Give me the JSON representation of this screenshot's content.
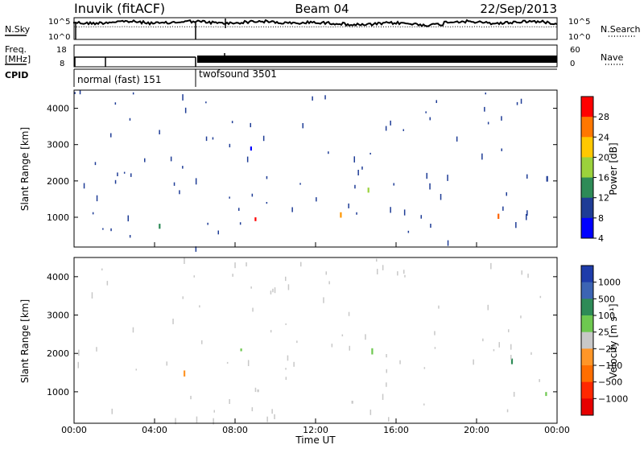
{
  "header": {
    "station": "Inuvik (fitACF)",
    "beam": "Beam 04",
    "date": "22/Sep/2013"
  },
  "top_panels": {
    "nsky_label": "N.Sky",
    "nsearch_label": "N.Search",
    "nsky_ticks": [
      "10^5",
      "10^0"
    ],
    "freq_label_1": "Freq.",
    "freq_label_2": "[MHz]",
    "freq_ticks": [
      "18",
      "8"
    ],
    "nave_label": "Nave",
    "nave_ticks": [
      "60",
      "0"
    ],
    "cpid_label": "CPID",
    "modes": [
      {
        "name": "normal (fast) 151",
        "start_hour": 0,
        "end_hour": 6
      },
      {
        "name": "twofsound 3501",
        "start_hour": 6,
        "end_hour": 24
      }
    ]
  },
  "chart_data": [
    {
      "type": "heatmap",
      "ylabel": "Slant Range [km]",
      "xlabel": "",
      "x_ticks": [
        "00:00",
        "04:00",
        "08:00",
        "12:00",
        "16:00",
        "20:00",
        "00:00"
      ],
      "x_range_hours": [
        0,
        24
      ],
      "y_ticks": [
        1000,
        2000,
        3000,
        4000
      ],
      "ylim": [
        180,
        4500
      ],
      "colorbar_label": "Power [dB]",
      "colorbar_ticks": [
        28,
        24,
        20,
        16,
        12,
        8,
        4
      ],
      "colorbar_colors": [
        "#ff0000",
        "#ff7700",
        "#ffc800",
        "#9bd23c",
        "#2e8b57",
        "#1e3c96",
        "#0000ff"
      ]
    },
    {
      "type": "heatmap",
      "ylabel": "Slant Range [km]",
      "xlabel": "Time UT",
      "x_ticks": [
        "00:00",
        "04:00",
        "08:00",
        "12:00",
        "16:00",
        "20:00",
        "00:00"
      ],
      "x_range_hours": [
        0,
        24
      ],
      "y_ticks": [
        1000,
        2000,
        3000,
        4000
      ],
      "ylim": [
        180,
        4500
      ],
      "colorbar_label": "Velocity [m s⁻¹]",
      "colorbar_ticks": [
        "1000",
        "500",
        "100",
        "25",
        "−25",
        "−100",
        "−500",
        "−1000"
      ],
      "colorbar_colors": [
        "#1e3caa",
        "#3c64b4",
        "#2e8b57",
        "#6ec850",
        "#c8c8c8",
        "#ff9628",
        "#ff6e00",
        "#ff2800",
        "#e60000"
      ]
    }
  ]
}
